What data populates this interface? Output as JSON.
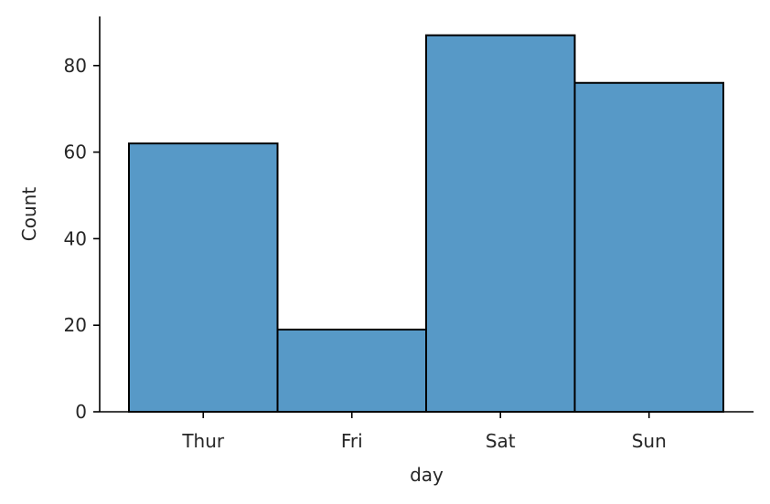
{
  "chart_data": {
    "type": "bar",
    "categories": [
      "Thur",
      "Fri",
      "Sat",
      "Sun"
    ],
    "values": [
      62,
      19,
      87,
      76
    ],
    "xlabel": "day",
    "ylabel": "Count",
    "ylim": [
      0,
      91.35
    ],
    "yticks": [
      0,
      20,
      40,
      60,
      80
    ],
    "grid": false,
    "legend": "none",
    "bar_color": "#5799c7",
    "edge_color": "#000000"
  }
}
